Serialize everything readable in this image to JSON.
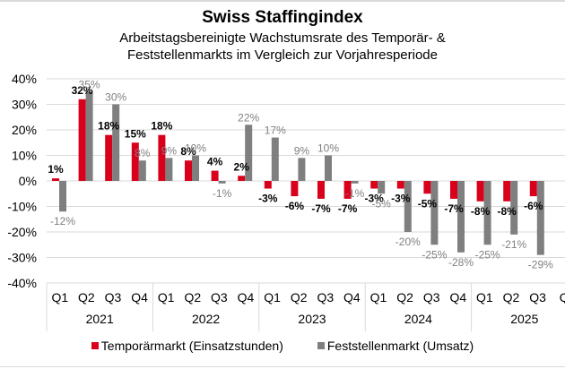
{
  "chart_data": {
    "type": "bar",
    "title": "Swiss Staffingindex",
    "subtitle_lines": [
      "Arbeitstagsbereinigte Wachstumsrate des Temporär- &",
      "Feststellenmarkts im Vergleich zur Vorjahresperiode"
    ],
    "xlabel": "",
    "ylabel": "",
    "ylim": [
      -40,
      40
    ],
    "yticks": [
      40,
      30,
      20,
      10,
      0,
      -10,
      -20,
      -30,
      -40
    ],
    "ytick_labels": [
      "40%",
      "30%",
      "20%",
      "10%",
      "0%",
      "-10%",
      "-20%",
      "-30%",
      "-40%"
    ],
    "grid": true,
    "legend_position": "bottom",
    "years": [
      "2021",
      "2022",
      "2023",
      "2024",
      "2025"
    ],
    "categories": [
      "Q1",
      "Q2",
      "Q3",
      "Q4",
      "Q1",
      "Q2",
      "Q3",
      "Q4",
      "Q1",
      "Q2",
      "Q3",
      "Q4",
      "Q1",
      "Q2",
      "Q3",
      "Q4",
      "Q1",
      "Q2",
      "Q3",
      "Q"
    ],
    "series": [
      {
        "name": "Temporärmarkt (Einsatzstunden)",
        "color": "#d9001b",
        "values": [
          1,
          32,
          18,
          15,
          18,
          8,
          4,
          2,
          -3,
          -6,
          -7,
          -7,
          -3,
          -3,
          -5,
          -7,
          -8,
          -8,
          -6,
          null
        ],
        "labels": [
          "1%",
          "32%",
          "18%",
          "15%",
          "18%",
          "8%",
          "4%",
          "2%",
          "-3%",
          "-6%",
          "-7%",
          "-7%",
          "-3%",
          "-3%",
          "-5%",
          "-7%",
          "-8%",
          "-8%",
          "-6%",
          ""
        ]
      },
      {
        "name": "Feststellenmarkt (Umsatz)",
        "color": "#7f7f7f",
        "values": [
          -12,
          35,
          30,
          8,
          9,
          10,
          -1,
          22,
          17,
          9,
          10,
          -1,
          -5,
          -20,
          -25,
          -28,
          -25,
          -21,
          -29,
          null
        ],
        "labels": [
          "-12%",
          "35%",
          "30%",
          "8%",
          "9%",
          "10%",
          "-1%",
          "22%",
          "17%",
          "9%",
          "10%",
          "-1%",
          "-5%",
          "-20%",
          "-25%",
          "-28%",
          "-25%",
          "-21%",
          "-29%",
          ""
        ]
      }
    ]
  }
}
